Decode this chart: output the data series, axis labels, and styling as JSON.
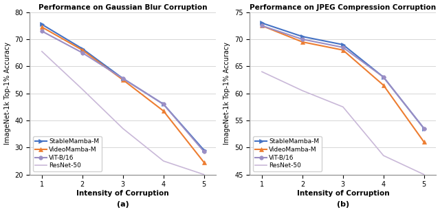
{
  "gaussian": {
    "title": "Performance on Gaussian Blur Corruption",
    "xlabel": "Intensity of Corruption",
    "ylabel": "ImageNet-1k Top-1% Accuracy",
    "subtitle": "(a)",
    "ylim": [
      20,
      80
    ],
    "yticks": [
      20,
      30,
      40,
      50,
      60,
      70,
      80
    ],
    "xticks": [
      1,
      2,
      3,
      4,
      5
    ],
    "series": {
      "StableMamba-M": {
        "x": [
          1,
          2,
          3,
          4,
          5
        ],
        "y": [
          75.5,
          66.5,
          55.5,
          46.0,
          29.0
        ],
        "color": "#4472c4",
        "marker": ">",
        "linewidth": 1.5
      },
      "VideoMamba-M": {
        "x": [
          1,
          2,
          3,
          4,
          5
        ],
        "y": [
          74.5,
          66.0,
          55.0,
          43.5,
          24.5
        ],
        "color": "#ed7d31",
        "marker": "^",
        "linewidth": 1.5
      },
      "ViT-B/16": {
        "x": [
          1,
          2,
          3,
          4,
          5
        ],
        "y": [
          73.0,
          65.0,
          55.5,
          46.0,
          28.5
        ],
        "color": "#9b8ec4",
        "marker": "o",
        "linewidth": 1.5
      },
      "ResNet-50": {
        "x": [
          1,
          2,
          3,
          4,
          5
        ],
        "y": [
          65.5,
          51.5,
          37.0,
          25.0,
          20.0
        ],
        "color": "#c9b8d8",
        "marker": null,
        "linewidth": 1.2
      }
    }
  },
  "jpeg": {
    "title": "Performance on JPEG Compression Corruption",
    "xlabel": "Intensity of Corruption",
    "ylabel": "ImageNet-1k Top-1% Accuracy",
    "subtitle": "(b)",
    "ylim": [
      45,
      75
    ],
    "yticks": [
      45,
      50,
      55,
      60,
      65,
      70,
      75
    ],
    "xticks": [
      1,
      2,
      3,
      4,
      5
    ],
    "series": {
      "StableMamba-M": {
        "x": [
          1,
          2,
          3,
          4,
          5
        ],
        "y": [
          73.0,
          70.5,
          69.0,
          63.0,
          53.5
        ],
        "color": "#4472c4",
        "marker": ">",
        "linewidth": 1.5
      },
      "VideoMamba-M": {
        "x": [
          1,
          2,
          3,
          4,
          5
        ],
        "y": [
          72.5,
          69.5,
          68.0,
          61.5,
          51.0
        ],
        "color": "#ed7d31",
        "marker": "^",
        "linewidth": 1.5
      },
      "ViT-B/16": {
        "x": [
          1,
          2,
          3,
          4,
          5
        ],
        "y": [
          72.5,
          70.0,
          68.5,
          63.0,
          53.5
        ],
        "color": "#9b8ec4",
        "marker": "o",
        "linewidth": 1.5
      },
      "ResNet-50": {
        "x": [
          1,
          2,
          3,
          4,
          5
        ],
        "y": [
          64.0,
          60.5,
          57.5,
          48.5,
          45.0
        ],
        "color": "#c9b8d8",
        "marker": null,
        "linewidth": 1.2
      }
    }
  },
  "legend_order": [
    "StableMamba-M",
    "VideoMamba-M",
    "ViT-B/16",
    "ResNet-50"
  ],
  "figsize": [
    6.4,
    3.08
  ],
  "dpi": 100
}
